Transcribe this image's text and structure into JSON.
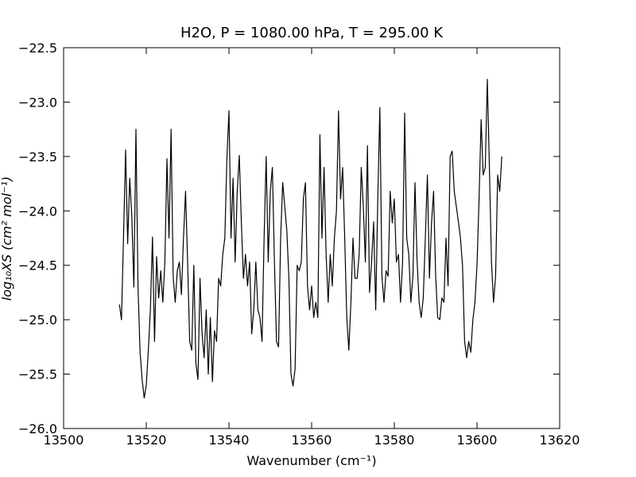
{
  "chart_data": {
    "type": "line",
    "title": "H2O, P = 1080.00 hPa, T = 295.00 K",
    "x_label": "Wavenumber (cm⁻¹)",
    "y_label": "log₁₀XS (cm² mol⁻¹)",
    "color": "#000000",
    "x": [
      13513.5,
      13514,
      13514.5,
      13515,
      13515.5,
      13516,
      13516.5,
      13517,
      13517.5,
      13518,
      13518.5,
      13519,
      13519.5,
      13520,
      13520.5,
      13521,
      13521.5,
      13522,
      13522.5,
      13523,
      13523.5,
      13524,
      13524.5,
      13525,
      13525.5,
      13526,
      13526.5,
      13527,
      13527.5,
      13528,
      13528.5,
      13529,
      13529.5,
      13530,
      13530.5,
      13531,
      13531.5,
      13532,
      13532.5,
      13533,
      13533.5,
      13534,
      13534.5,
      13535,
      13535.5,
      13536,
      13536.5,
      13537,
      13537.5,
      13538,
      13538.5,
      13539,
      13539.5,
      13540,
      13540.5,
      13541,
      13541.5,
      13542,
      13542.5,
      13543,
      13543.5,
      13544,
      13544.5,
      13545,
      13545.5,
      13546,
      13546.5,
      13547,
      13547.5,
      13548,
      13548.5,
      13549,
      13549.5,
      13550,
      13550.5,
      13551,
      13551.5,
      13552,
      13552.5,
      13553,
      13553.5,
      13554,
      13554.5,
      13555,
      13555.5,
      13556,
      13556.5,
      13557,
      13557.5,
      13558,
      13558.5,
      13559,
      13559.5,
      13560,
      13560.5,
      13561,
      13561.5,
      13562,
      13562.5,
      13563,
      13563.5,
      13564,
      13564.5,
      13565,
      13565.5,
      13566,
      13566.5,
      13567,
      13567.5,
      13568,
      13568.5,
      13569,
      13569.5,
      13570,
      13570.5,
      13571,
      13571.5,
      13572,
      13572.5,
      13573,
      13573.5,
      13574,
      13574.5,
      13575,
      13575.5,
      13576,
      13576.5,
      13577,
      13577.5,
      13578,
      13578.5,
      13579,
      13579.5,
      13580,
      13580.5,
      13581,
      13581.5,
      13582,
      13582.5,
      13583,
      13583.5,
      13584,
      13584.5,
      13585,
      13585.5,
      13586,
      13586.5,
      13587,
      13587.5,
      13588,
      13588.5,
      13589,
      13589.5,
      13590,
      13590.5,
      13591,
      13591.5,
      13592,
      13592.5,
      13593,
      13593.5,
      13594,
      13594.5,
      13595,
      13595.5,
      13596,
      13596.5,
      13597,
      13597.5,
      13598,
      13598.5,
      13599,
      13599.5,
      13600,
      13600.5,
      13601,
      13601.5,
      13602,
      13602.5,
      13603,
      13603.5,
      13604,
      13604.5,
      13605,
      13605.5,
      13606
    ],
    "values": [
      -24.86,
      -25.0,
      -24.23,
      -23.44,
      -24.3,
      -23.7,
      -24.05,
      -24.7,
      -23.25,
      -24.7,
      -25.3,
      -25.55,
      -25.72,
      -25.6,
      -25.28,
      -24.9,
      -24.24,
      -25.2,
      -24.42,
      -24.8,
      -24.55,
      -24.84,
      -24.47,
      -23.52,
      -24.25,
      -23.25,
      -24.6,
      -24.84,
      -24.55,
      -24.47,
      -24.77,
      -24.25,
      -23.82,
      -24.47,
      -25.2,
      -25.28,
      -24.5,
      -25.4,
      -25.55,
      -24.62,
      -25.13,
      -25.35,
      -24.91,
      -25.5,
      -24.98,
      -25.57,
      -25.1,
      -25.2,
      -24.62,
      -24.69,
      -24.4,
      -24.25,
      -23.52,
      -23.08,
      -24.25,
      -23.7,
      -24.47,
      -23.82,
      -23.49,
      -24.11,
      -24.62,
      -24.4,
      -24.69,
      -24.47,
      -25.13,
      -24.91,
      -24.47,
      -24.91,
      -24.98,
      -25.2,
      -24.25,
      -23.5,
      -24.47,
      -23.82,
      -23.6,
      -24.47,
      -25.2,
      -25.25,
      -24.25,
      -23.74,
      -23.96,
      -24.18,
      -24.62,
      -25.5,
      -25.61,
      -25.45,
      -24.5,
      -24.55,
      -24.47,
      -23.89,
      -23.74,
      -24.69,
      -24.91,
      -24.69,
      -24.98,
      -24.84,
      -24.98,
      -23.3,
      -24.25,
      -23.6,
      -24.4,
      -24.84,
      -24.4,
      -24.69,
      -24.25,
      -24.0,
      -23.08,
      -23.89,
      -23.6,
      -24.25,
      -24.98,
      -25.28,
      -24.84,
      -24.25,
      -24.62,
      -24.62,
      -24.4,
      -23.6,
      -23.96,
      -24.47,
      -23.4,
      -24.75,
      -24.47,
      -24.1,
      -24.91,
      -23.89,
      -23.05,
      -24.6,
      -24.84,
      -24.55,
      -24.6,
      -23.82,
      -24.11,
      -23.89,
      -24.47,
      -24.4,
      -24.84,
      -24.47,
      -23.1,
      -24.25,
      -24.4,
      -24.84,
      -24.6,
      -23.74,
      -24.45,
      -24.84,
      -24.98,
      -24.8,
      -24.25,
      -23.67,
      -24.62,
      -24.11,
      -23.82,
      -24.6,
      -24.98,
      -25.0,
      -24.8,
      -24.84,
      -24.25,
      -24.69,
      -23.5,
      -23.45,
      -23.82,
      -23.96,
      -24.1,
      -24.25,
      -24.5,
      -25.2,
      -25.35,
      -25.2,
      -25.3,
      -25.0,
      -24.84,
      -24.5,
      -23.89,
      -23.16,
      -23.67,
      -23.6,
      -22.79,
      -23.6,
      -24.47,
      -24.84,
      -24.6,
      -23.67,
      -23.82,
      -23.5
    ],
    "xlim": [
      13500,
      13620
    ],
    "ylim": [
      -26.0,
      -22.5
    ],
    "xticks": [
      13500,
      13520,
      13540,
      13560,
      13580,
      13600,
      13620
    ],
    "yticks": [
      {
        "value": -26.0,
        "label": "−26.0"
      },
      {
        "value": -25.5,
        "label": "−25.5"
      },
      {
        "value": -25.0,
        "label": "−25.0"
      },
      {
        "value": -24.5,
        "label": "−24.5"
      },
      {
        "value": -24.0,
        "label": "−24.0"
      },
      {
        "value": -23.5,
        "label": "−23.5"
      },
      {
        "value": -23.0,
        "label": "−23.0"
      },
      {
        "value": -22.5,
        "label": "−22.5"
      }
    ],
    "grid": false
  }
}
